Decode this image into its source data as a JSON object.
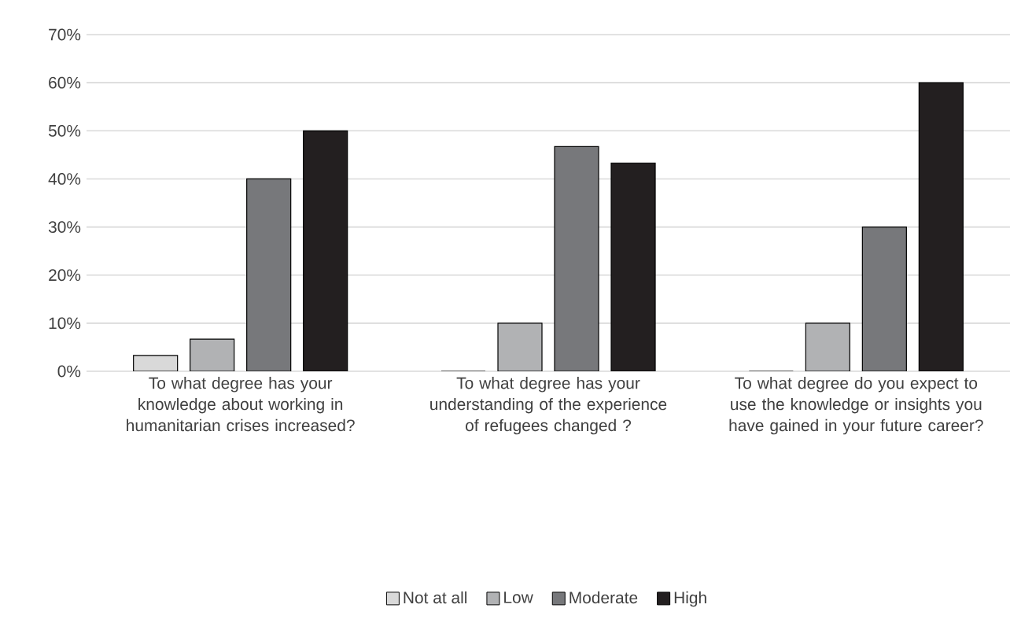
{
  "chart_data": {
    "type": "bar",
    "categories": [
      "To what degree has your knowledge about working in humanitarian crises increased?",
      "To what degree has your understanding of the experience of refugees changed ?",
      "To what degree do you expect to use the knowledge or insights you have gained in your future career?"
    ],
    "series": [
      {
        "name": "Not at all",
        "color": "#d9d9d9",
        "values": [
          3.3,
          0,
          0
        ]
      },
      {
        "name": "Low",
        "color": "#b1b2b4",
        "values": [
          6.7,
          10,
          10
        ]
      },
      {
        "name": "Moderate",
        "color": "#77787b",
        "values": [
          40,
          46.7,
          30
        ]
      },
      {
        "name": "High",
        "color": "#231f20",
        "values": [
          50,
          43.3,
          60
        ]
      }
    ],
    "ylim": [
      0,
      70
    ],
    "yticks": [
      {
        "value": 0,
        "label": "0%"
      },
      {
        "value": 10,
        "label": "10%"
      },
      {
        "value": 20,
        "label": "20%"
      },
      {
        "value": 30,
        "label": "30%"
      },
      {
        "value": 40,
        "label": "40%"
      },
      {
        "value": 50,
        "label": "50%"
      },
      {
        "value": 60,
        "label": "60%"
      },
      {
        "value": 70,
        "label": "70%"
      }
    ],
    "grid": "y",
    "legend": "bottom"
  }
}
